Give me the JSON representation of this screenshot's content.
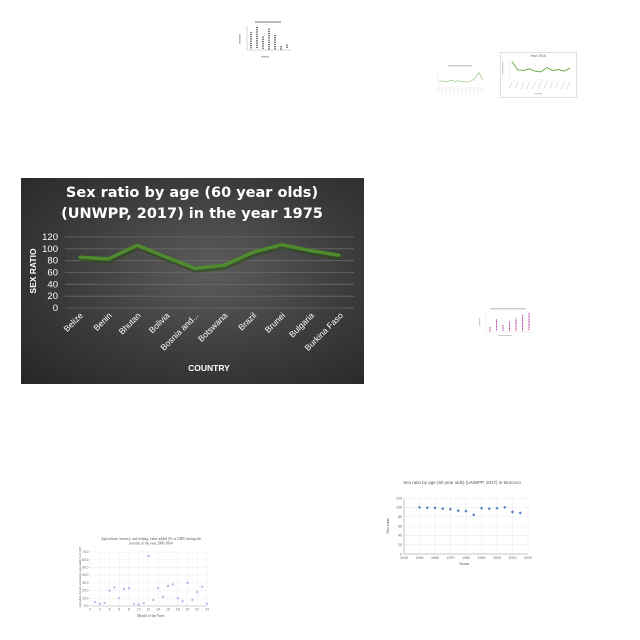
{
  "main_chart": {
    "title_line1": "Sex ratio by age (60 year olds)",
    "title_line2": "(UNWPP, 2017) in the year 1975",
    "xlabel": "COUNTRY",
    "ylabel": "SEX RATIO",
    "colors": {
      "line": "#4f8a2e",
      "line_shadow": "#2a4a18",
      "text": "#ffffff",
      "grid": "#6a6a6a"
    }
  },
  "chart_data": [
    {
      "type": "line",
      "title": "Sex ratio by age (60 year olds) (UNWPP, 2017) in the year 1975",
      "xlabel": "COUNTRY",
      "ylabel": "SEX RATIO",
      "categories": [
        "Belize",
        "Benin",
        "Bhutan",
        "Bolivia",
        "Bosnia and...",
        "Botswana",
        "Brazil",
        "Brunei",
        "Bulgaria",
        "Burkina Faso"
      ],
      "values": [
        86,
        83,
        106,
        86,
        67,
        72,
        94,
        107,
        97,
        89
      ],
      "ylim": [
        0,
        120
      ],
      "yticks": [
        0,
        20,
        40,
        60,
        80,
        100,
        120
      ],
      "grid": true
    },
    {
      "type": "scatter",
      "title": "Sex ratio by age (60 year olds) (UNWPP, 2017) in Morocco",
      "xlabel": "Years",
      "ylabel": "Sex ratio",
      "x": [
        1950,
        1955,
        1960,
        1965,
        1970,
        1975,
        1980,
        1985,
        1990,
        1995,
        2000,
        2005,
        2010,
        2015
      ],
      "values": [
        100,
        99,
        99,
        97,
        96,
        93,
        92,
        84,
        98,
        97,
        98,
        100,
        90,
        88
      ],
      "xlim": [
        1940,
        2020
      ],
      "xticks": [
        1940,
        1950,
        1960,
        1970,
        1980,
        1990,
        2000,
        2010,
        2020
      ],
      "ylim": [
        0,
        120
      ],
      "yticks": [
        0,
        20,
        40,
        60,
        80,
        100,
        120
      ],
      "grid": true
    },
    {
      "type": "scatter",
      "title": "Agriculture, forestry, and fishing, value added (% of GDP) during the months of the year 2000-2004",
      "xlabel": "Month of the Years",
      "ylabel": "Agriculture, forestry, and fishing, value added (% of GDP)",
      "x": [
        1,
        2,
        3,
        4,
        5,
        6,
        7,
        8,
        9,
        10,
        11,
        12,
        13,
        14,
        15,
        16,
        17,
        18,
        19,
        20,
        21,
        22,
        23,
        24
      ],
      "values": [
        5,
        3,
        4,
        20,
        24,
        10,
        22,
        23,
        3,
        2,
        4,
        65,
        8,
        23,
        12,
        26,
        28,
        10,
        6,
        30,
        8,
        18,
        25,
        3
      ],
      "xlim": [
        0,
        24
      ],
      "xticks": [
        0,
        2,
        4,
        6,
        8,
        10,
        12,
        14,
        16,
        18,
        20,
        22,
        24
      ],
      "ylim": [
        0,
        70
      ],
      "yticks": [
        0.0,
        10.0,
        20.0,
        30.0,
        40.0,
        50.0,
        60.0,
        70.0
      ],
      "grid": true
    },
    {
      "type": "line",
      "title": "Year 2016",
      "values": [
        85,
        50,
        48,
        55,
        45,
        42,
        60,
        48,
        52,
        45,
        58
      ]
    },
    {
      "type": "line",
      "values": [
        30,
        32,
        28,
        35,
        30,
        33,
        29,
        27,
        31,
        45,
        70,
        35
      ]
    },
    {
      "type": "scatter",
      "values": [
        55,
        70,
        40,
        65,
        45,
        10,
        15
      ]
    },
    {
      "type": "scatter",
      "values": [
        3,
        10,
        5,
        8,
        11,
        14,
        16
      ]
    }
  ]
}
